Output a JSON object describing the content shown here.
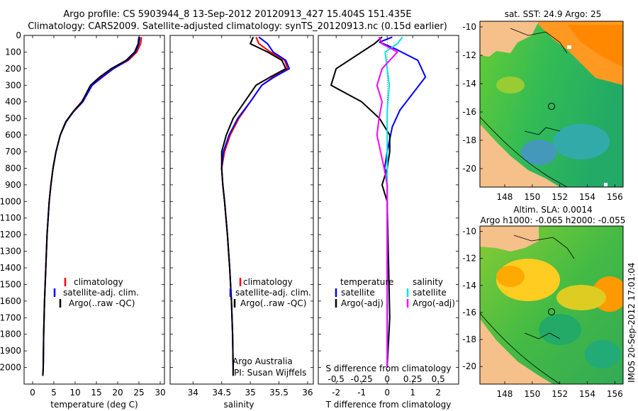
{
  "title_line1": "Argo profile: CS 5903944_8 13-Sep-2012 20120913_427 15.404S 151.435E",
  "title_line2": "Climatology: CARS2009. Satellite-adjusted climatology: synTS_20120913.nc (0.15d earlier)",
  "stamp": "IMOS 20-Sep-2012 17:01:04",
  "colors": {
    "climatology": "#ff0000",
    "satellite": "#0000ff",
    "argo": "#000000",
    "salinity_sat": "#00e5e5",
    "salinity_argo": "#ff00ff"
  },
  "chart_data": [
    {
      "type": "line",
      "id": "temperature",
      "xlabel": "temperature (deg C)",
      "xlim": [
        -2,
        31
      ],
      "ylim": [
        2100,
        0
      ],
      "x_ticks": [
        0,
        5,
        10,
        15,
        20,
        25,
        30
      ],
      "x_tick_labels": [
        "0",
        "5",
        "10",
        "15",
        "20",
        "25",
        "30"
      ],
      "y_ticks": [
        0,
        100,
        200,
        300,
        400,
        500,
        600,
        700,
        800,
        900,
        1000,
        1100,
        1200,
        1300,
        1400,
        1500,
        1600,
        1700,
        1800,
        1900,
        2000
      ],
      "y_tick_labels": [
        "0",
        "100",
        "200",
        "300",
        "400",
        "500",
        "600",
        "700",
        "800",
        "900",
        "1000",
        "1100",
        "1200",
        "1300",
        "1400",
        "1500",
        "1600",
        "1700",
        "1800",
        "1900",
        "2000"
      ],
      "series": [
        {
          "name": "climatology",
          "color": "#ff0000",
          "points": [
            [
              25.6,
              10
            ],
            [
              25.4,
              50
            ],
            [
              24.5,
              100
            ],
            [
              22.5,
              150
            ],
            [
              19,
              200
            ],
            [
              16.5,
              250
            ],
            [
              14,
              300
            ],
            [
              11.5,
              400
            ],
            [
              9.5,
              460
            ],
            [
              7.8,
              520
            ],
            [
              6.5,
              600
            ],
            [
              5.5,
              700
            ],
            [
              4.8,
              800
            ],
            [
              4.3,
              900
            ],
            [
              3.9,
              1000
            ],
            [
              3.4,
              1200
            ],
            [
              3.1,
              1400
            ],
            [
              2.8,
              1600
            ],
            [
              2.6,
              1800
            ],
            [
              2.5,
              2000
            ],
            [
              2.4,
              2050
            ]
          ]
        },
        {
          "name": "satellite-adj. clim.",
          "color": "#0000ff",
          "points": [
            [
              25.2,
              10
            ],
            [
              25.0,
              50
            ],
            [
              24.2,
              100
            ],
            [
              22.3,
              150
            ],
            [
              19,
              200
            ],
            [
              16.3,
              250
            ],
            [
              14,
              300
            ],
            [
              11.8,
              400
            ],
            [
              9.6,
              460
            ],
            [
              7.9,
              520
            ],
            [
              6.5,
              600
            ],
            [
              5.5,
              700
            ],
            [
              4.8,
              800
            ],
            [
              4.3,
              900
            ],
            [
              3.9,
              1000
            ],
            [
              3.4,
              1200
            ],
            [
              3.1,
              1400
            ],
            [
              2.8,
              1600
            ],
            [
              2.6,
              1800
            ],
            [
              2.5,
              2000
            ],
            [
              2.4,
              2050
            ]
          ]
        },
        {
          "name": "Argo(..raw -QC)",
          "color": "#000000",
          "points": [
            [
              25.0,
              10
            ],
            [
              24.8,
              50
            ],
            [
              24.0,
              100
            ],
            [
              22.0,
              150
            ],
            [
              18.5,
              200
            ],
            [
              15.8,
              250
            ],
            [
              13.6,
              300
            ],
            [
              11.6,
              400
            ],
            [
              9.5,
              460
            ],
            [
              7.8,
              520
            ],
            [
              6.5,
              600
            ],
            [
              5.5,
              700
            ],
            [
              4.8,
              800
            ],
            [
              4.3,
              900
            ],
            [
              3.9,
              1000
            ],
            [
              3.4,
              1200
            ],
            [
              3.1,
              1400
            ],
            [
              2.8,
              1600
            ],
            [
              2.6,
              1800
            ],
            [
              2.5,
              2000
            ],
            [
              2.4,
              2050
            ]
          ]
        }
      ],
      "legend": {
        "placement": "lower-center",
        "entries": [
          "climatology",
          "satellite-adj. clim.",
          "Argo(..raw -QC)"
        ]
      }
    },
    {
      "type": "line",
      "id": "salinity",
      "xlabel": "salinity",
      "xlim": [
        33.6,
        36.1
      ],
      "ylim": [
        2100,
        0
      ],
      "x_ticks": [
        34,
        34.5,
        35,
        35.5,
        36
      ],
      "x_tick_labels": [
        "34",
        "34.5",
        "35",
        "35.5",
        "36"
      ],
      "series": [
        {
          "name": "climatology",
          "color": "#ff0000",
          "points": [
            [
              35.1,
              10
            ],
            [
              35.15,
              50
            ],
            [
              35.35,
              100
            ],
            [
              35.6,
              150
            ],
            [
              35.65,
              200
            ],
            [
              35.4,
              250
            ],
            [
              35.2,
              300
            ],
            [
              35.0,
              400
            ],
            [
              34.8,
              500
            ],
            [
              34.65,
              600
            ],
            [
              34.55,
              700
            ],
            [
              34.5,
              800
            ],
            [
              34.52,
              900
            ],
            [
              34.55,
              1000
            ],
            [
              34.6,
              1200
            ],
            [
              34.64,
              1400
            ],
            [
              34.67,
              1600
            ],
            [
              34.69,
              1800
            ],
            [
              34.7,
              2000
            ],
            [
              34.7,
              2050
            ]
          ]
        },
        {
          "name": "satellite-adj. clim.",
          "color": "#0000ff",
          "points": [
            [
              35.15,
              10
            ],
            [
              35.3,
              50
            ],
            [
              35.4,
              100
            ],
            [
              35.62,
              150
            ],
            [
              35.68,
              200
            ],
            [
              35.42,
              250
            ],
            [
              35.2,
              300
            ],
            [
              35.0,
              400
            ],
            [
              34.78,
              500
            ],
            [
              34.63,
              600
            ],
            [
              34.53,
              700
            ],
            [
              34.5,
              800
            ],
            [
              34.52,
              900
            ],
            [
              34.55,
              1000
            ],
            [
              34.6,
              1200
            ],
            [
              34.64,
              1400
            ],
            [
              34.67,
              1600
            ],
            [
              34.69,
              1800
            ],
            [
              34.7,
              2000
            ],
            [
              34.7,
              2050
            ]
          ]
        },
        {
          "name": "Argo(..raw -QC)",
          "color": "#000000",
          "points": [
            [
              35.05,
              10
            ],
            [
              35.0,
              50
            ],
            [
              35.3,
              100
            ],
            [
              35.55,
              150
            ],
            [
              35.62,
              200
            ],
            [
              35.35,
              250
            ],
            [
              35.1,
              300
            ],
            [
              34.9,
              400
            ],
            [
              34.7,
              500
            ],
            [
              34.58,
              600
            ],
            [
              34.5,
              700
            ],
            [
              34.5,
              800
            ],
            [
              34.52,
              900
            ],
            [
              34.55,
              1000
            ],
            [
              34.6,
              1200
            ],
            [
              34.64,
              1400
            ],
            [
              34.67,
              1600
            ],
            [
              34.69,
              1800
            ],
            [
              34.7,
              2000
            ],
            [
              34.7,
              2050
            ]
          ]
        }
      ],
      "legend": {
        "placement": "lower-center",
        "entries": [
          "climatology",
          "satellite-adj. clim.",
          "Argo(..raw -QC)"
        ]
      },
      "annotation": [
        "Argo Australia",
        "PI: Susan Wijffels"
      ]
    },
    {
      "type": "line",
      "id": "difference",
      "xlim": [
        -2.7,
        2.8
      ],
      "ylim": [
        2100,
        0
      ],
      "x_ticks": [
        -2,
        -1,
        0,
        1,
        2
      ],
      "x_tick_labels": [
        "-2",
        "-1",
        "0",
        "1",
        "2"
      ],
      "top_ticks": [
        -0.5,
        -0.25,
        0,
        0.25,
        0.5
      ],
      "top_tick_labels": [
        "-0.5",
        "-0.25",
        "0",
        "0.25",
        "0.5"
      ],
      "top_label": "S difference from climatology",
      "xlabel": "T difference from climatology",
      "series": [
        {
          "name": "temperature satellite",
          "color": "#0000ff",
          "points": [
            [
              0.2,
              10
            ],
            [
              -0.3,
              40
            ],
            [
              0.3,
              80
            ],
            [
              1.2,
              150
            ],
            [
              1.5,
              250
            ],
            [
              1.0,
              350
            ],
            [
              0.5,
              450
            ],
            [
              0.2,
              550
            ],
            [
              0.0,
              700
            ],
            [
              -0.1,
              800
            ],
            [
              0,
              900
            ],
            [
              0,
              2000
            ]
          ]
        },
        {
          "name": "temperature Argo(-adj)",
          "color": "#000000",
          "points": [
            [
              -0.2,
              10
            ],
            [
              -0.5,
              50
            ],
            [
              -1.0,
              100
            ],
            [
              -2.0,
              200
            ],
            [
              -2.2,
              300
            ],
            [
              -1.0,
              400
            ],
            [
              -0.3,
              500
            ],
            [
              0.1,
              600
            ],
            [
              0.1,
              700
            ],
            [
              0.0,
              800
            ],
            [
              -0.2,
              900
            ],
            [
              0.0,
              1000
            ],
            [
              0.1,
              1700
            ],
            [
              0.0,
              2000
            ]
          ]
        },
        {
          "name": "salinity satellite",
          "color": "#00e5e5",
          "points": [
            [
              0.15,
              10
            ],
            [
              0.1,
              50
            ],
            [
              -0.02,
              100
            ],
            [
              0.0,
              200
            ],
            [
              0.02,
              300
            ],
            [
              0.0,
              450
            ],
            [
              0.0,
              600
            ],
            [
              0.0,
              900
            ],
            [
              0.0,
              2000
            ]
          ]
        },
        {
          "name": "salinity Argo(-adj)",
          "color": "#ff00ff",
          "points": [
            [
              -0.08,
              10
            ],
            [
              -0.05,
              50
            ],
            [
              0.1,
              100
            ],
            [
              -0.05,
              200
            ],
            [
              -0.1,
              300
            ],
            [
              -0.05,
              400
            ],
            [
              -0.08,
              500
            ],
            [
              -0.1,
              600
            ],
            [
              -0.03,
              800
            ],
            [
              0.0,
              900
            ],
            [
              0.0,
              2000
            ]
          ]
        }
      ],
      "legend": {
        "placement": "lower-center",
        "headers": [
          "temperature",
          "salinity"
        ],
        "entries": [
          "satellite",
          "Argo(-adj)",
          "satellite",
          "Argo(-adj)"
        ]
      }
    },
    {
      "type": "heatmap",
      "id": "sst-map",
      "title": "sat. SST: 24.9 Argo: 25",
      "xlim": [
        146.2,
        156.6
      ],
      "ylim": [
        -21.3,
        -9.6
      ],
      "x_tick_labels": [
        "148",
        "150",
        "152",
        "154",
        "156"
      ],
      "y_tick_labels": [
        "-10",
        "-12",
        "-14",
        "-16",
        "-18",
        "-20"
      ],
      "argo_position": [
        151.435,
        -15.404
      ]
    },
    {
      "type": "heatmap",
      "id": "sla-map",
      "title": [
        "Altim. SLA: 0.0014",
        "Argo h1000: -0.065 h2000: -0.055"
      ],
      "xlim": [
        146.2,
        156.6
      ],
      "ylim": [
        -21.3,
        -9.6
      ],
      "x_tick_labels": [
        "148",
        "150",
        "152",
        "154",
        "156"
      ],
      "y_tick_labels": [
        "-10",
        "-12",
        "-14",
        "-16",
        "-18",
        "-20"
      ],
      "argo_position": [
        151.435,
        -15.404
      ]
    }
  ]
}
